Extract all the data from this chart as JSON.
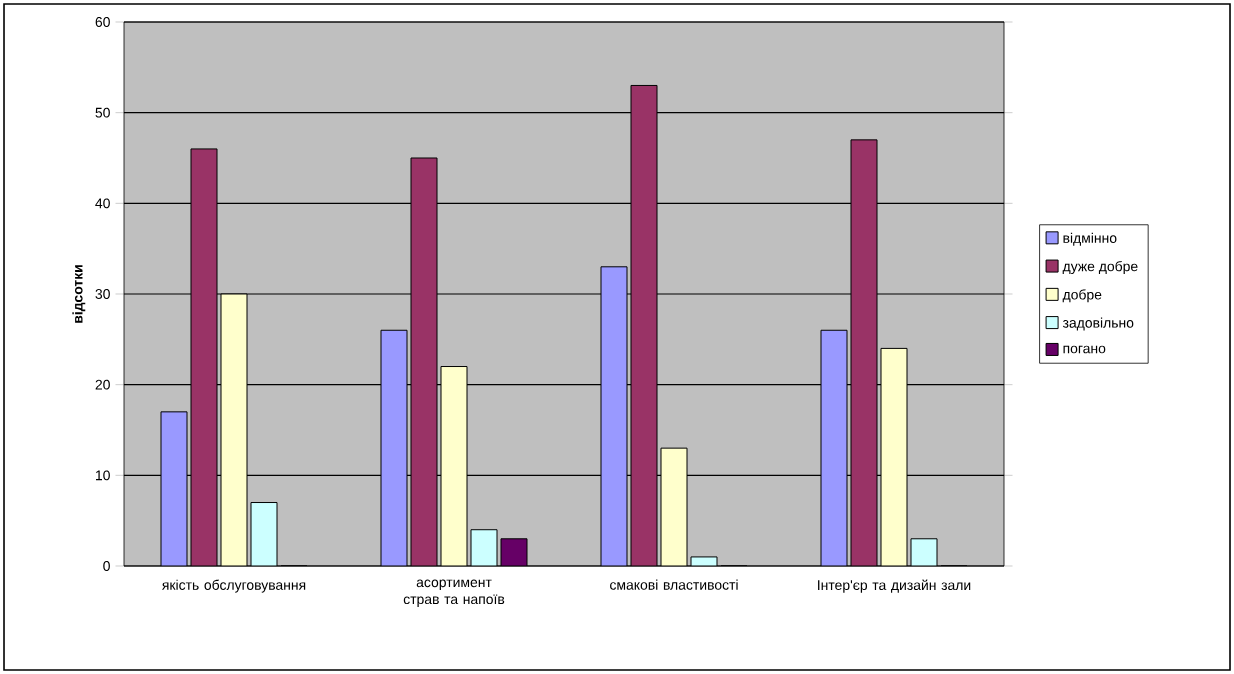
{
  "chart_data": {
    "type": "bar",
    "ylabel": "відсотки",
    "categories": [
      "якість обслуговування",
      "асортимент страв та напоїв",
      "смакові властивості",
      "Інтер'єр та дизайн зали"
    ],
    "series": [
      {
        "name": "відмінно",
        "color": "#9999ff",
        "values": [
          17,
          26,
          33,
          26
        ]
      },
      {
        "name": "дуже добре",
        "color": "#993366",
        "values": [
          46,
          45,
          53,
          47
        ]
      },
      {
        "name": "добре",
        "color": "#ffffcc",
        "values": [
          30,
          22,
          13,
          24
        ]
      },
      {
        "name": "задовільно",
        "color": "#ccffff",
        "values": [
          7,
          4,
          1,
          3
        ]
      },
      {
        "name": "погано",
        "color": "#660066",
        "values": [
          0,
          3,
          0,
          0
        ]
      }
    ],
    "ylim": [
      0,
      60
    ],
    "yticks": [
      0,
      10,
      20,
      30,
      40,
      50,
      60
    ],
    "grid": "y",
    "legend": "right"
  }
}
